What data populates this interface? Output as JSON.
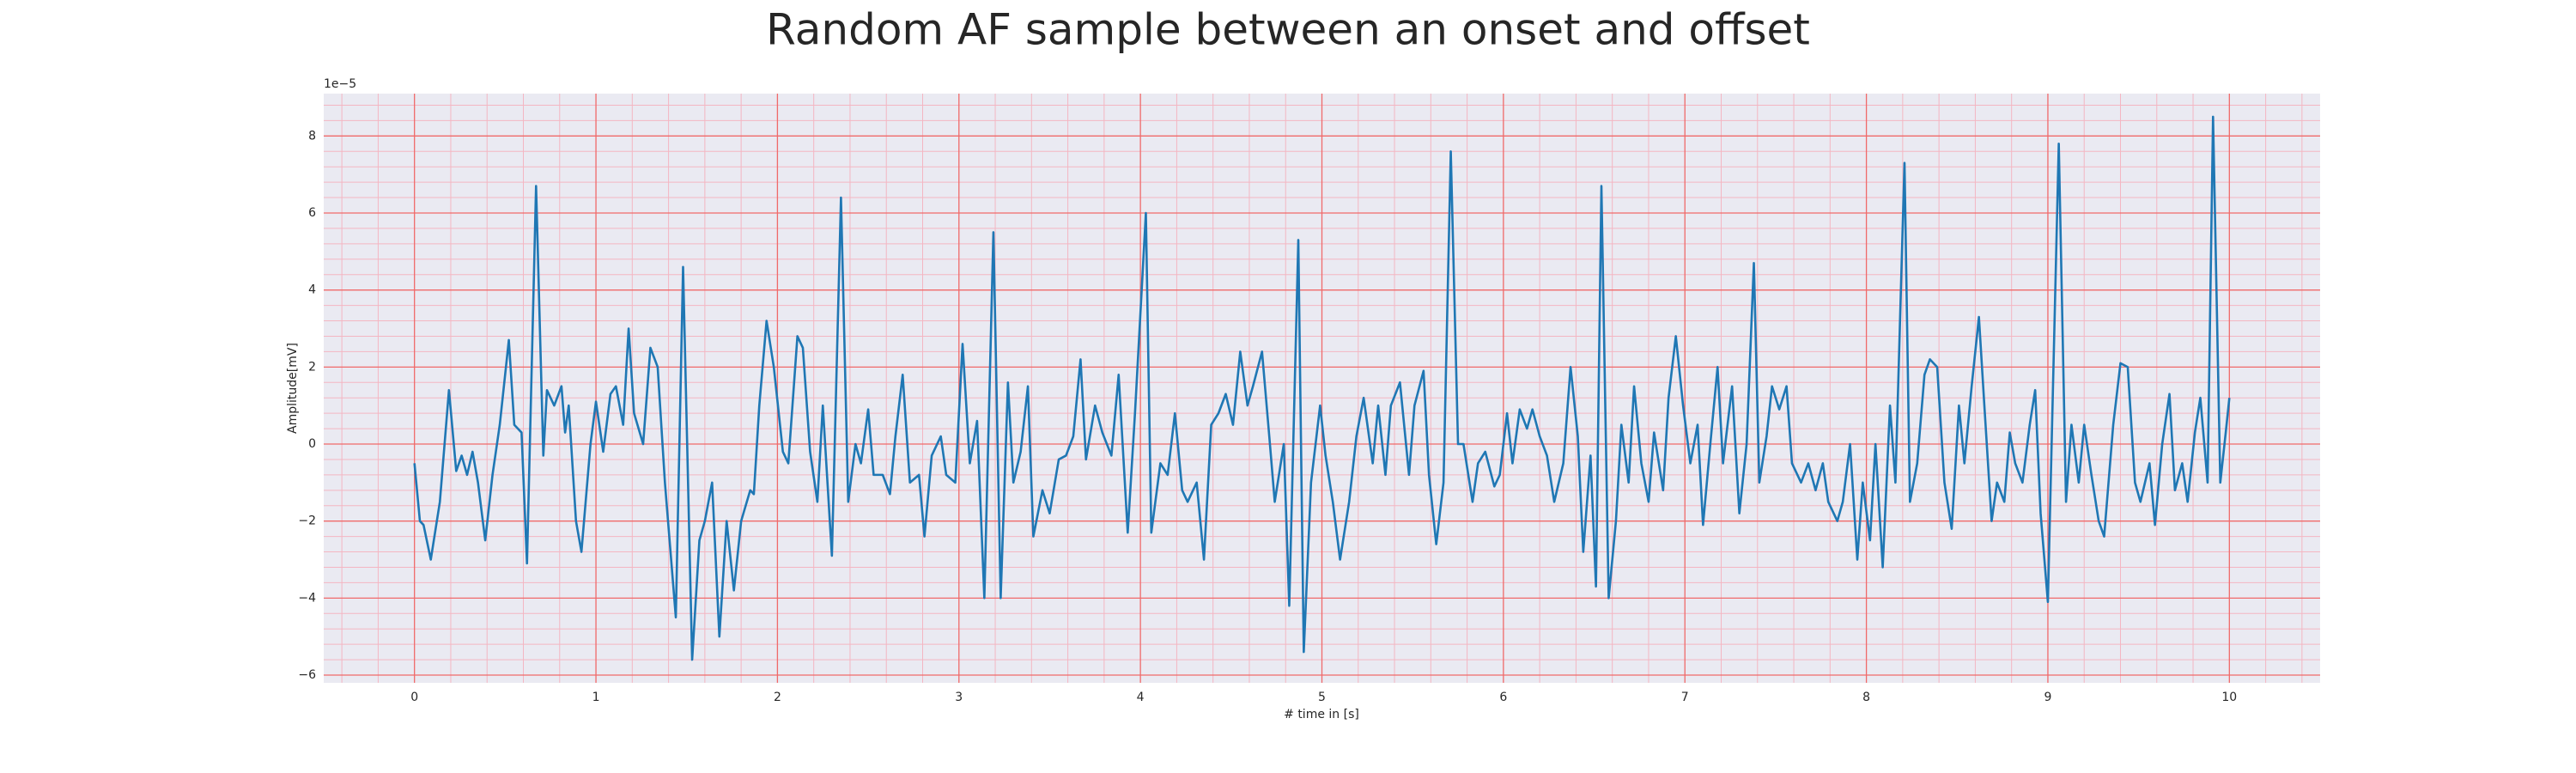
{
  "chart_data": {
    "type": "line",
    "title": "Random AF sample between an onset and offset",
    "xlabel": "# time in [s]",
    "ylabel": "Amplitude[mV]",
    "y_offset_label": "1e−5",
    "color": "#1f77b4",
    "grid": true,
    "minor_grid": true,
    "xlim": [
      -0.5,
      10.5
    ],
    "ylim": [
      -6.2e-05,
      9.1e-05
    ],
    "xticks": [
      0,
      1,
      2,
      3,
      4,
      5,
      6,
      7,
      8,
      9,
      10
    ],
    "yticks": [
      {
        "value": -6e-05,
        "label": "−6"
      },
      {
        "value": -4e-05,
        "label": "−4"
      },
      {
        "value": -2e-05,
        "label": "−2"
      },
      0,
      {
        "value": 2e-05,
        "label": "2"
      },
      {
        "value": 4e-05,
        "label": "4"
      },
      {
        "value": 6e-05,
        "label": "6"
      },
      {
        "value": 8e-05,
        "label": "8"
      }
    ],
    "x": [
      0,
      0.03,
      0.05,
      0.09,
      0.14,
      0.19,
      0.23,
      0.26,
      0.29,
      0.32,
      0.35,
      0.39,
      0.43,
      0.47,
      0.52,
      0.55,
      0.59,
      0.62,
      0.67,
      0.71,
      0.73,
      0.77,
      0.81,
      0.83,
      0.85,
      0.89,
      0.92,
      0.97,
      1.0,
      1.04,
      1.08,
      1.11,
      1.15,
      1.18,
      1.21,
      1.26,
      1.3,
      1.34,
      1.38,
      1.44,
      1.48,
      1.53,
      1.57,
      1.6,
      1.64,
      1.68,
      1.72,
      1.76,
      1.8,
      1.85,
      1.87,
      1.9,
      1.94,
      1.98,
      2.03,
      2.06,
      2.11,
      2.14,
      2.18,
      2.22,
      2.25,
      2.3,
      2.35,
      2.39,
      2.43,
      2.46,
      2.5,
      2.53,
      2.58,
      2.62,
      2.65,
      2.69,
      2.73,
      2.78,
      2.81,
      2.85,
      2.9,
      2.93,
      2.98,
      3.02,
      3.06,
      3.1,
      3.14,
      3.19,
      3.23,
      3.27,
      3.3,
      3.34,
      3.38,
      3.41,
      3.46,
      3.5,
      3.55,
      3.59,
      3.63,
      3.67,
      3.7,
      3.75,
      3.79,
      3.84,
      3.88,
      3.93,
      3.97,
      4.03,
      4.06,
      4.11,
      4.15,
      4.19,
      4.23,
      4.26,
      4.31,
      4.35,
      4.39,
      4.43,
      4.47,
      4.51,
      4.55,
      4.59,
      4.62,
      4.67,
      4.71,
      4.74,
      4.79,
      4.82,
      4.87,
      4.9,
      4.94,
      4.99,
      5.02,
      5.06,
      5.1,
      5.15,
      5.19,
      5.23,
      5.28,
      5.31,
      5.35,
      5.38,
      5.43,
      5.48,
      5.51,
      5.56,
      5.59,
      5.63,
      5.67,
      5.71,
      5.75,
      5.78,
      5.83,
      5.86,
      5.9,
      5.95,
      5.98,
      6.02,
      6.05,
      6.09,
      6.13,
      6.16,
      6.2,
      6.24,
      6.28,
      6.33,
      6.37,
      6.41,
      6.44,
      6.48,
      6.51,
      6.54,
      6.58,
      6.62,
      6.65,
      6.69,
      6.72,
      6.76,
      6.8,
      6.83,
      6.88,
      6.91,
      6.95,
      6.99,
      7.03,
      7.07,
      7.1,
      7.14,
      7.18,
      7.21,
      7.26,
      7.3,
      7.34,
      7.38,
      7.41,
      7.45,
      7.48,
      7.52,
      7.56,
      7.59,
      7.64,
      7.68,
      7.72,
      7.76,
      7.79,
      7.84,
      7.87,
      7.91,
      7.95,
      7.98,
      8.02,
      8.05,
      8.09,
      8.13,
      8.16,
      8.21,
      8.24,
      8.28,
      8.32,
      8.35,
      8.39,
      8.43,
      8.47,
      8.51,
      8.54,
      8.58,
      8.62,
      8.65,
      8.69,
      8.72,
      8.76,
      8.79,
      8.82,
      8.86,
      8.9,
      8.93,
      8.96,
      9.0,
      9.06,
      9.1,
      9.13,
      9.17,
      9.2,
      9.24,
      9.28,
      9.31,
      9.36,
      9.4,
      9.44,
      9.48,
      9.51,
      9.56,
      9.59,
      9.63,
      9.67,
      9.7,
      9.74,
      9.77,
      9.81,
      9.84,
      9.88,
      9.91,
      9.95,
      9.98,
      10.0
    ],
    "values": [
      -5e-06,
      -2e-05,
      -2.1e-05,
      -3e-05,
      -1.5e-05,
      1.4e-05,
      -7e-06,
      -3e-06,
      -8e-06,
      -2e-06,
      -1e-05,
      -2.5e-05,
      -8e-06,
      5e-06,
      2.7e-05,
      5e-06,
      3e-06,
      -3.1e-05,
      6.7e-05,
      -3e-06,
      1.4e-05,
      1e-05,
      1.5e-05,
      3e-06,
      1e-05,
      -2e-05,
      -2.8e-05,
      0,
      1.1e-05,
      -2e-06,
      1.3e-05,
      1.5e-05,
      5e-06,
      3e-05,
      8e-06,
      0,
      2.5e-05,
      2e-05,
      -1e-05,
      -4.5e-05,
      4.6e-05,
      -5.6e-05,
      -2.5e-05,
      -2e-05,
      -1e-05,
      -5e-05,
      -2e-05,
      -3.8e-05,
      -2e-05,
      -1.2e-05,
      -1.3e-05,
      1e-05,
      3.2e-05,
      2e-05,
      -2e-06,
      -5e-06,
      2.8e-05,
      2.5e-05,
      -2e-06,
      -1.5e-05,
      1e-05,
      -2.9e-05,
      6.4e-05,
      -1.5e-05,
      0,
      -5e-06,
      9e-06,
      -8e-06,
      -8e-06,
      -1.3e-05,
      2e-06,
      1.8e-05,
      -1e-05,
      -8e-06,
      -2.4e-05,
      -3e-06,
      2e-06,
      -8e-06,
      -1e-05,
      2.6e-05,
      -5e-06,
      6e-06,
      -4e-05,
      5.5e-05,
      -4e-05,
      1.6e-05,
      -1e-05,
      -2e-06,
      1.5e-05,
      -2.4e-05,
      -1.2e-05,
      -1.8e-05,
      -4e-06,
      -3e-06,
      2e-06,
      2.2e-05,
      -4e-06,
      1e-05,
      3e-06,
      -3e-06,
      1.8e-05,
      -2.3e-05,
      8e-06,
      6e-05,
      -2.3e-05,
      -5e-06,
      -8e-06,
      8e-06,
      -1.2e-05,
      -1.5e-05,
      -1e-05,
      -3e-05,
      5e-06,
      8e-06,
      1.3e-05,
      5e-06,
      2.4e-05,
      1e-05,
      1.5e-05,
      2.4e-05,
      2e-06,
      -1.5e-05,
      0,
      -4.2e-05,
      5.3e-05,
      -5.4e-05,
      -1e-05,
      1e-05,
      -3e-06,
      -1.5e-05,
      -3e-05,
      -1.5e-05,
      2e-06,
      1.2e-05,
      -5e-06,
      1e-05,
      -8e-06,
      1e-05,
      1.6e-05,
      -8e-06,
      1e-05,
      1.9e-05,
      -8e-06,
      -2.6e-05,
      -1e-05,
      7.6e-05,
      0,
      0,
      -1.5e-05,
      -5e-06,
      -2e-06,
      -1.1e-05,
      -8e-06,
      8e-06,
      -5e-06,
      9e-06,
      4e-06,
      9e-06,
      2e-06,
      -3e-06,
      -1.5e-05,
      -5e-06,
      2e-05,
      2e-06,
      -2.8e-05,
      -3e-06,
      -3.7e-05,
      6.7e-05,
      -4e-05,
      -2e-05,
      5e-06,
      -1e-05,
      1.5e-05,
      -5e-06,
      -1.5e-05,
      3e-06,
      -1.2e-05,
      1.2e-05,
      2.8e-05,
      1e-05,
      -5e-06,
      5e-06,
      -2.1e-05,
      0,
      2e-05,
      -5e-06,
      1.5e-05,
      -1.8e-05,
      0,
      4.7e-05,
      -1e-05,
      2e-06,
      1.5e-05,
      9e-06,
      1.5e-05,
      -5e-06,
      -1e-05,
      -5e-06,
      -1.2e-05,
      -5e-06,
      -1.5e-05,
      -2e-05,
      -1.5e-05,
      0,
      -3e-05,
      -1e-05,
      -2.5e-05,
      0,
      -3.2e-05,
      1e-05,
      -1e-05,
      7.3e-05,
      -1.5e-05,
      -5e-06,
      1.8e-05,
      2.2e-05,
      2e-05,
      -1e-05,
      -2.2e-05,
      1e-05,
      -5e-06,
      1.5e-05,
      3.3e-05,
      1e-05,
      -2e-05,
      -1e-05,
      -1.5e-05,
      3e-06,
      -5e-06,
      -1e-05,
      5e-06,
      1.4e-05,
      -1.8e-05,
      -4.1e-05,
      7.8e-05,
      -1.5e-05,
      5e-06,
      -1e-05,
      5e-06,
      -8e-06,
      -2e-05,
      -2.4e-05,
      5e-06,
      2.1e-05,
      2e-05,
      -1e-05,
      -1.5e-05,
      -5e-06,
      -2.1e-05,
      0,
      1.3e-05,
      -1.2e-05,
      -5e-06,
      -1.5e-05,
      3e-06,
      1.2e-05,
      -1e-05,
      8.5e-05,
      -1e-05,
      3e-06,
      1.2e-05
    ]
  }
}
